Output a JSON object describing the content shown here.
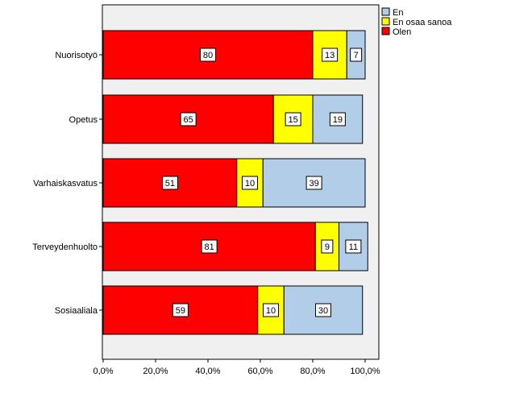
{
  "chart_data": {
    "type": "bar",
    "orientation": "horizontal",
    "stacked": true,
    "categories": [
      "Nuorisotyö",
      "Opetus",
      "Varhaiskasvatus",
      "Terveydenhuolto",
      "Sosiaaliala"
    ],
    "series": [
      {
        "name": "Olen",
        "color": "#ff0000",
        "values": [
          80,
          65,
          51,
          81,
          59
        ]
      },
      {
        "name": "En osaa sanoa",
        "color": "#ffff00",
        "values": [
          13,
          15,
          10,
          9,
          10
        ]
      },
      {
        "name": "En",
        "color": "#b2cde8",
        "values": [
          7,
          19,
          39,
          11,
          30
        ]
      }
    ],
    "data_labels": [
      [
        "80",
        "65",
        "51",
        "81",
        "59"
      ],
      [
        "13",
        "15",
        "10",
        "9",
        "10"
      ],
      [
        "7",
        "19",
        "39",
        "11",
        "30"
      ]
    ],
    "x_ticks": [
      "0,0%",
      "20,0%",
      "40,0%",
      "60,0%",
      "80,0%",
      "100,0%"
    ],
    "xlim": [
      0,
      100
    ],
    "legend_order": [
      "En",
      "En osaa sanoa",
      "Olen"
    ],
    "legend_position": "right",
    "plot_background": "#f0f0f0",
    "grid": false,
    "title": "",
    "xlabel": "",
    "ylabel": ""
  }
}
